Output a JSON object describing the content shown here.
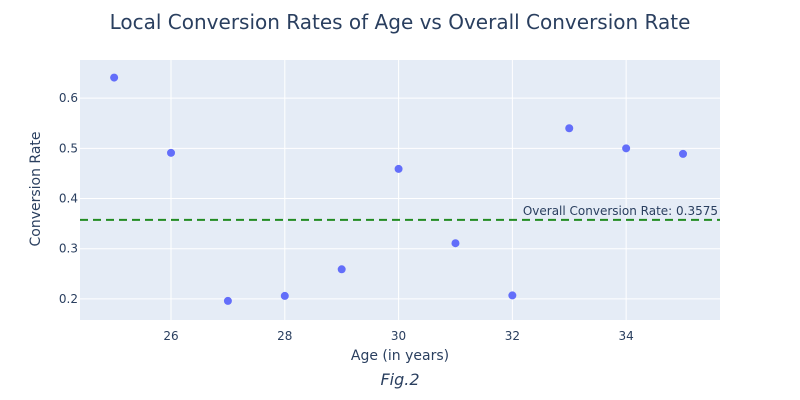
{
  "chart_data": {
    "type": "scatter",
    "title": "Local Conversion Rates of Age vs Overall Conversion Rate",
    "xlabel": "Age (in years)",
    "ylabel": "Conversion Rate",
    "caption": "Fig.2",
    "xlim": [
      24.4,
      35.65
    ],
    "ylim": [
      0.158,
      0.676
    ],
    "xticks": [
      26,
      28,
      30,
      32,
      34
    ],
    "yticks": [
      0.2,
      0.3,
      0.4,
      0.5,
      0.6
    ],
    "x": [
      25,
      26,
      27,
      28,
      29,
      30,
      31,
      32,
      33,
      34,
      35
    ],
    "y": [
      0.641,
      0.491,
      0.196,
      0.206,
      0.259,
      0.459,
      0.311,
      0.207,
      0.54,
      0.5,
      0.489
    ],
    "reference_line": {
      "value": 0.3575,
      "label": "Overall Conversion Rate: 0.3575",
      "color": "#228b22",
      "style": "dashed"
    },
    "marker_color": "#636efa",
    "plot_bg": "#e5ecf6",
    "grid": true
  }
}
